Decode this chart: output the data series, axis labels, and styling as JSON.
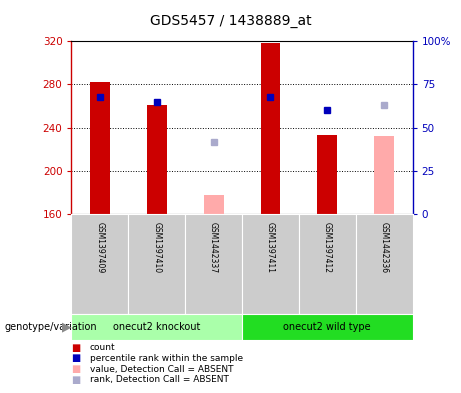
{
  "title": "GDS5457 / 1438889_at",
  "samples": [
    "GSM1397409",
    "GSM1397410",
    "GSM1442337",
    "GSM1397411",
    "GSM1397412",
    "GSM1442336"
  ],
  "bar_bottom": 160,
  "count_values": [
    282,
    261,
    null,
    318,
    233,
    null
  ],
  "count_absent_values": [
    null,
    null,
    178,
    null,
    null,
    232
  ],
  "rank_values": [
    68,
    65,
    null,
    68,
    60,
    null
  ],
  "rank_absent_values": [
    null,
    null,
    42,
    null,
    null,
    63
  ],
  "ylim_left": [
    160,
    320
  ],
  "ylim_right": [
    0,
    100
  ],
  "yticks_left": [
    160,
    200,
    240,
    280,
    320
  ],
  "yticks_right": [
    0,
    25,
    50,
    75,
    100
  ],
  "bar_width": 0.35,
  "marker_size": 5,
  "colors": {
    "count_present": "#cc0000",
    "count_absent": "#ffaaaa",
    "rank_present": "#0000bb",
    "rank_absent": "#aaaacc",
    "group1_bg": "#aaffaa",
    "group2_bg": "#22dd22",
    "sample_bg": "#cccccc",
    "left_axis_color": "#cc0000",
    "right_axis_color": "#0000bb"
  },
  "legend_labels": [
    "count",
    "percentile rank within the sample",
    "value, Detection Call = ABSENT",
    "rank, Detection Call = ABSENT"
  ],
  "legend_colors": [
    "#cc0000",
    "#0000bb",
    "#ffaaaa",
    "#aaaacc"
  ],
  "group_label": "genotype/variation",
  "group1_label": "onecut2 knockout",
  "group2_label": "onecut2 wild type"
}
